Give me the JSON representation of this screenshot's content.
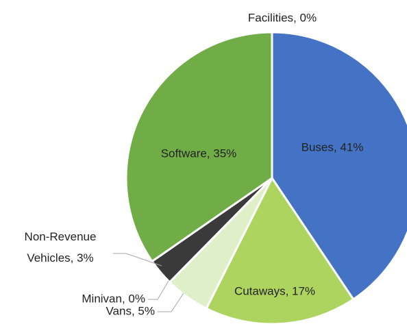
{
  "chart_data": {
    "type": "pie",
    "values": [
      41,
      17,
      5,
      0,
      3,
      35,
      0
    ],
    "value_labels": [
      "Buses, 41%",
      "Cutaways, 17%",
      "Vans, 5%",
      "Minivan, 0%",
      "Non-Revenue Vehicles, 3%",
      "Software, 35%",
      "Facilities, 0%"
    ],
    "colors": [
      "#4472c4",
      "#add45e",
      "#dff0c8",
      "#f2f8ea",
      "#3a3a3a",
      "#70ad47",
      "#ffffff"
    ]
  }
}
